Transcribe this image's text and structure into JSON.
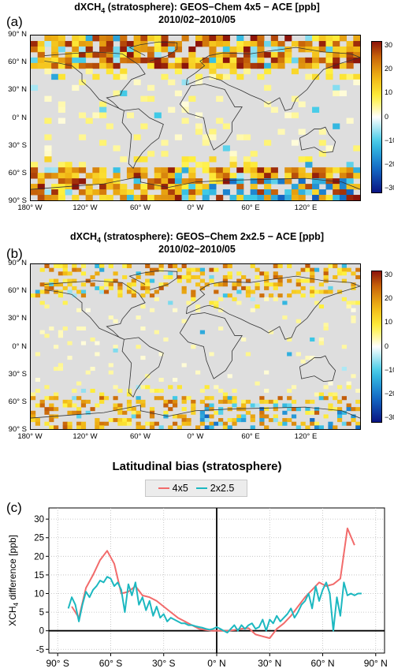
{
  "panel_a": {
    "title_prefix": "dXCH",
    "title_sub": "4",
    "title_suffix": " (stratosphere): GEOS−Chem 4x5 − ACE [ppb]",
    "period": "2010/02−2010/05",
    "letter": "(a)"
  },
  "panel_b": {
    "title_prefix": "dXCH",
    "title_sub": "4",
    "title_suffix": " (stratosphere): GEOS−Chem 2x2.5 − ACE [ppb]",
    "period": "2010/02−2010/05",
    "letter": "(b)"
  },
  "map_axes": {
    "lat_labels": [
      "90° N",
      "60° N",
      "30° N",
      "0° N",
      "30° S",
      "60° S",
      "90° S"
    ],
    "lon_labels": [
      "180° W",
      "120° W",
      "60° W",
      "0° W",
      "60° E",
      "120° E"
    ],
    "colorbar_ticks": [
      "30",
      "20",
      "10",
      "0",
      "−10",
      "−20",
      "−30"
    ]
  },
  "panel_c": {
    "letter": "(c)"
  },
  "chart_data": {
    "type": "line",
    "title": "Latitudinal bias (stratosphere)",
    "xlabel": "",
    "ylabel_prefix": "XCH",
    "ylabel_sub": "4",
    "ylabel_suffix": " difference [ppb]",
    "xlim": [
      -95,
      95
    ],
    "ylim": [
      -6,
      33
    ],
    "xticks": [
      -90,
      -60,
      -30,
      0,
      30,
      60,
      90
    ],
    "xtick_labels": [
      "90° S",
      "60° S",
      "30° S",
      "0° N",
      "30° N",
      "60° N",
      "90° N"
    ],
    "yticks": [
      -5,
      0,
      5,
      10,
      15,
      20,
      25,
      30
    ],
    "grid": true,
    "legend": "top",
    "series": [
      {
        "name": "4x5",
        "color": "#f26b6b",
        "x": [
          -82,
          -78,
          -74,
          -70,
          -66,
          -62,
          -58,
          -54,
          -50,
          -46,
          -42,
          -38,
          -34,
          -30,
          -26,
          -22,
          -18,
          -14,
          -10,
          -6,
          -2,
          2,
          6,
          10,
          14,
          18,
          22,
          26,
          30,
          34,
          38,
          42,
          46,
          50,
          54,
          58,
          62,
          66,
          70,
          74,
          78
        ],
        "y": [
          6.5,
          3.5,
          11.5,
          15,
          19,
          21.5,
          18,
          10,
          10.5,
          12,
          9.5,
          9,
          8,
          6.5,
          5,
          3.5,
          2.5,
          1.5,
          0.5,
          0.2,
          0,
          0,
          0,
          0.2,
          0.5,
          0.7,
          -1,
          -1.5,
          -2,
          0.5,
          2,
          4,
          6.5,
          9,
          11,
          13,
          12,
          12.5,
          14,
          27.5,
          23
        ]
      },
      {
        "name": "2x2.5",
        "color": "#1cb8c0",
        "x": [
          -84,
          -82,
          -80,
          -78,
          -76,
          -74,
          -72,
          -70,
          -68,
          -66,
          -64,
          -62,
          -60,
          -58,
          -56,
          -54,
          -52,
          -50,
          -48,
          -46,
          -44,
          -42,
          -40,
          -38,
          -36,
          -34,
          -32,
          -30,
          -28,
          -26,
          -24,
          -22,
          -20,
          -18,
          -16,
          -14,
          -12,
          -10,
          -8,
          -6,
          -4,
          -2,
          0,
          2,
          4,
          6,
          8,
          10,
          12,
          14,
          16,
          18,
          20,
          22,
          24,
          26,
          28,
          30,
          32,
          34,
          36,
          38,
          40,
          42,
          44,
          46,
          48,
          50,
          52,
          54,
          56,
          58,
          60,
          62,
          64,
          66,
          68,
          70,
          72,
          74,
          76,
          78,
          80,
          82
        ],
        "y": [
          6,
          9,
          7,
          2.5,
          7,
          10.5,
          9,
          11,
          12,
          13.5,
          13,
          14.5,
          14,
          12,
          13,
          11,
          5,
          12.5,
          9.5,
          13,
          7,
          9,
          5.5,
          8,
          4,
          6.5,
          3.5,
          4.5,
          2.5,
          3.5,
          3,
          2.5,
          2,
          2,
          1.5,
          1.5,
          1.2,
          1,
          0.8,
          0.5,
          0.3,
          0.5,
          1,
          0.5,
          0,
          -0.5,
          0.5,
          1.5,
          0,
          1.5,
          0.5,
          1.5,
          2,
          0.5,
          1,
          3,
          0,
          3,
          2,
          4,
          2.5,
          3.5,
          4.5,
          6,
          3.5,
          5,
          7,
          8,
          10,
          6,
          12,
          8,
          11,
          13,
          10,
          0,
          9,
          4,
          13,
          9.5,
          10,
          9.5,
          10,
          10
        ]
      }
    ]
  }
}
